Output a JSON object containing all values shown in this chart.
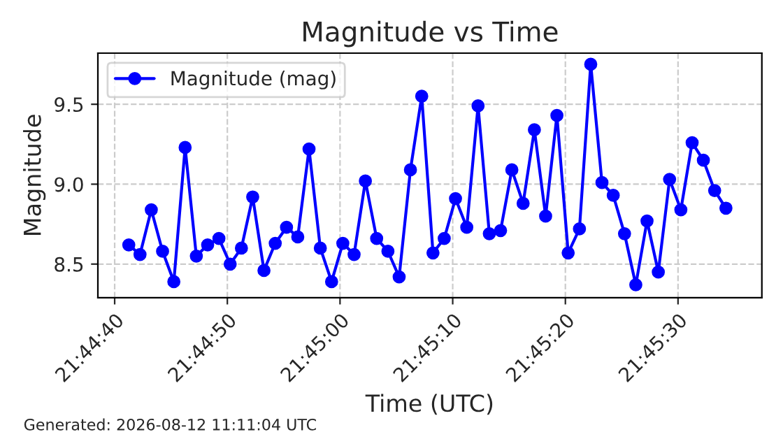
{
  "chart_data": {
    "type": "line",
    "title": "Magnitude vs Time",
    "xlabel": "Time (UTC)",
    "ylabel": "Magnitude",
    "x": [
      21.744792,
      21.745069,
      21.745347,
      21.745625,
      21.745903,
      21.746181,
      21.746458,
      21.746736,
      21.747014,
      21.747292,
      21.747569,
      21.747847,
      21.748125,
      21.748403,
      21.748681,
      21.748958,
      21.749236,
      21.749514,
      21.749792,
      21.750069,
      21.750347,
      21.750625,
      21.750903,
      21.751181,
      21.751458,
      21.751736,
      21.752014,
      21.752292,
      21.752569,
      21.752847,
      21.753125,
      21.753403,
      21.753681,
      21.753958,
      21.754236,
      21.754514,
      21.754792,
      21.755069,
      21.755347,
      21.755625,
      21.755903,
      21.756181,
      21.756458,
      21.756736,
      21.757014,
      21.757292,
      21.757569,
      21.757847,
      21.758125,
      21.758403,
      21.758681,
      21.758958,
      21.759236,
      21.759514
    ],
    "series": [
      {
        "name": "Magnitude (mag)",
        "color": "#0000ff",
        "values": [
          8.62,
          8.56,
          8.84,
          8.58,
          8.39,
          9.23,
          8.55,
          8.62,
          8.66,
          8.5,
          8.6,
          8.92,
          8.46,
          8.63,
          8.73,
          8.67,
          9.22,
          8.6,
          8.39,
          8.63,
          8.56,
          9.02,
          8.66,
          8.58,
          8.42,
          9.09,
          9.55,
          8.57,
          8.66,
          8.91,
          8.73,
          9.49,
          8.69,
          8.71,
          9.09,
          8.88,
          9.34,
          8.8,
          9.43,
          8.57,
          8.72,
          9.75,
          9.01,
          8.93,
          8.69,
          8.37,
          8.77,
          8.45,
          9.03,
          8.84,
          9.26,
          9.15,
          8.96,
          8.85
        ]
      }
    ],
    "xlim": [
      21.74403,
      21.7604
    ],
    "xticks": [
      {
        "value": 21.744444,
        "label": "21:44:40"
      },
      {
        "value": 21.747222,
        "label": "21:44:50"
      },
      {
        "value": 21.75,
        "label": "21:45:00"
      },
      {
        "value": 21.752778,
        "label": "21:45:10"
      },
      {
        "value": 21.755556,
        "label": "21:45:20"
      },
      {
        "value": 21.758333,
        "label": "21:45:30"
      }
    ],
    "ylim": [
      8.29,
      9.82
    ],
    "yticks": [
      {
        "value": 8.5,
        "label": "8.5"
      },
      {
        "value": 9.0,
        "label": "9.0"
      },
      {
        "value": 9.5,
        "label": "9.5"
      }
    ],
    "grid": true,
    "legend": "top left",
    "marker": "circle",
    "line_style": "solid",
    "annotations": [
      "Generated: 2026-08-12 11:11:04 UTC"
    ]
  }
}
